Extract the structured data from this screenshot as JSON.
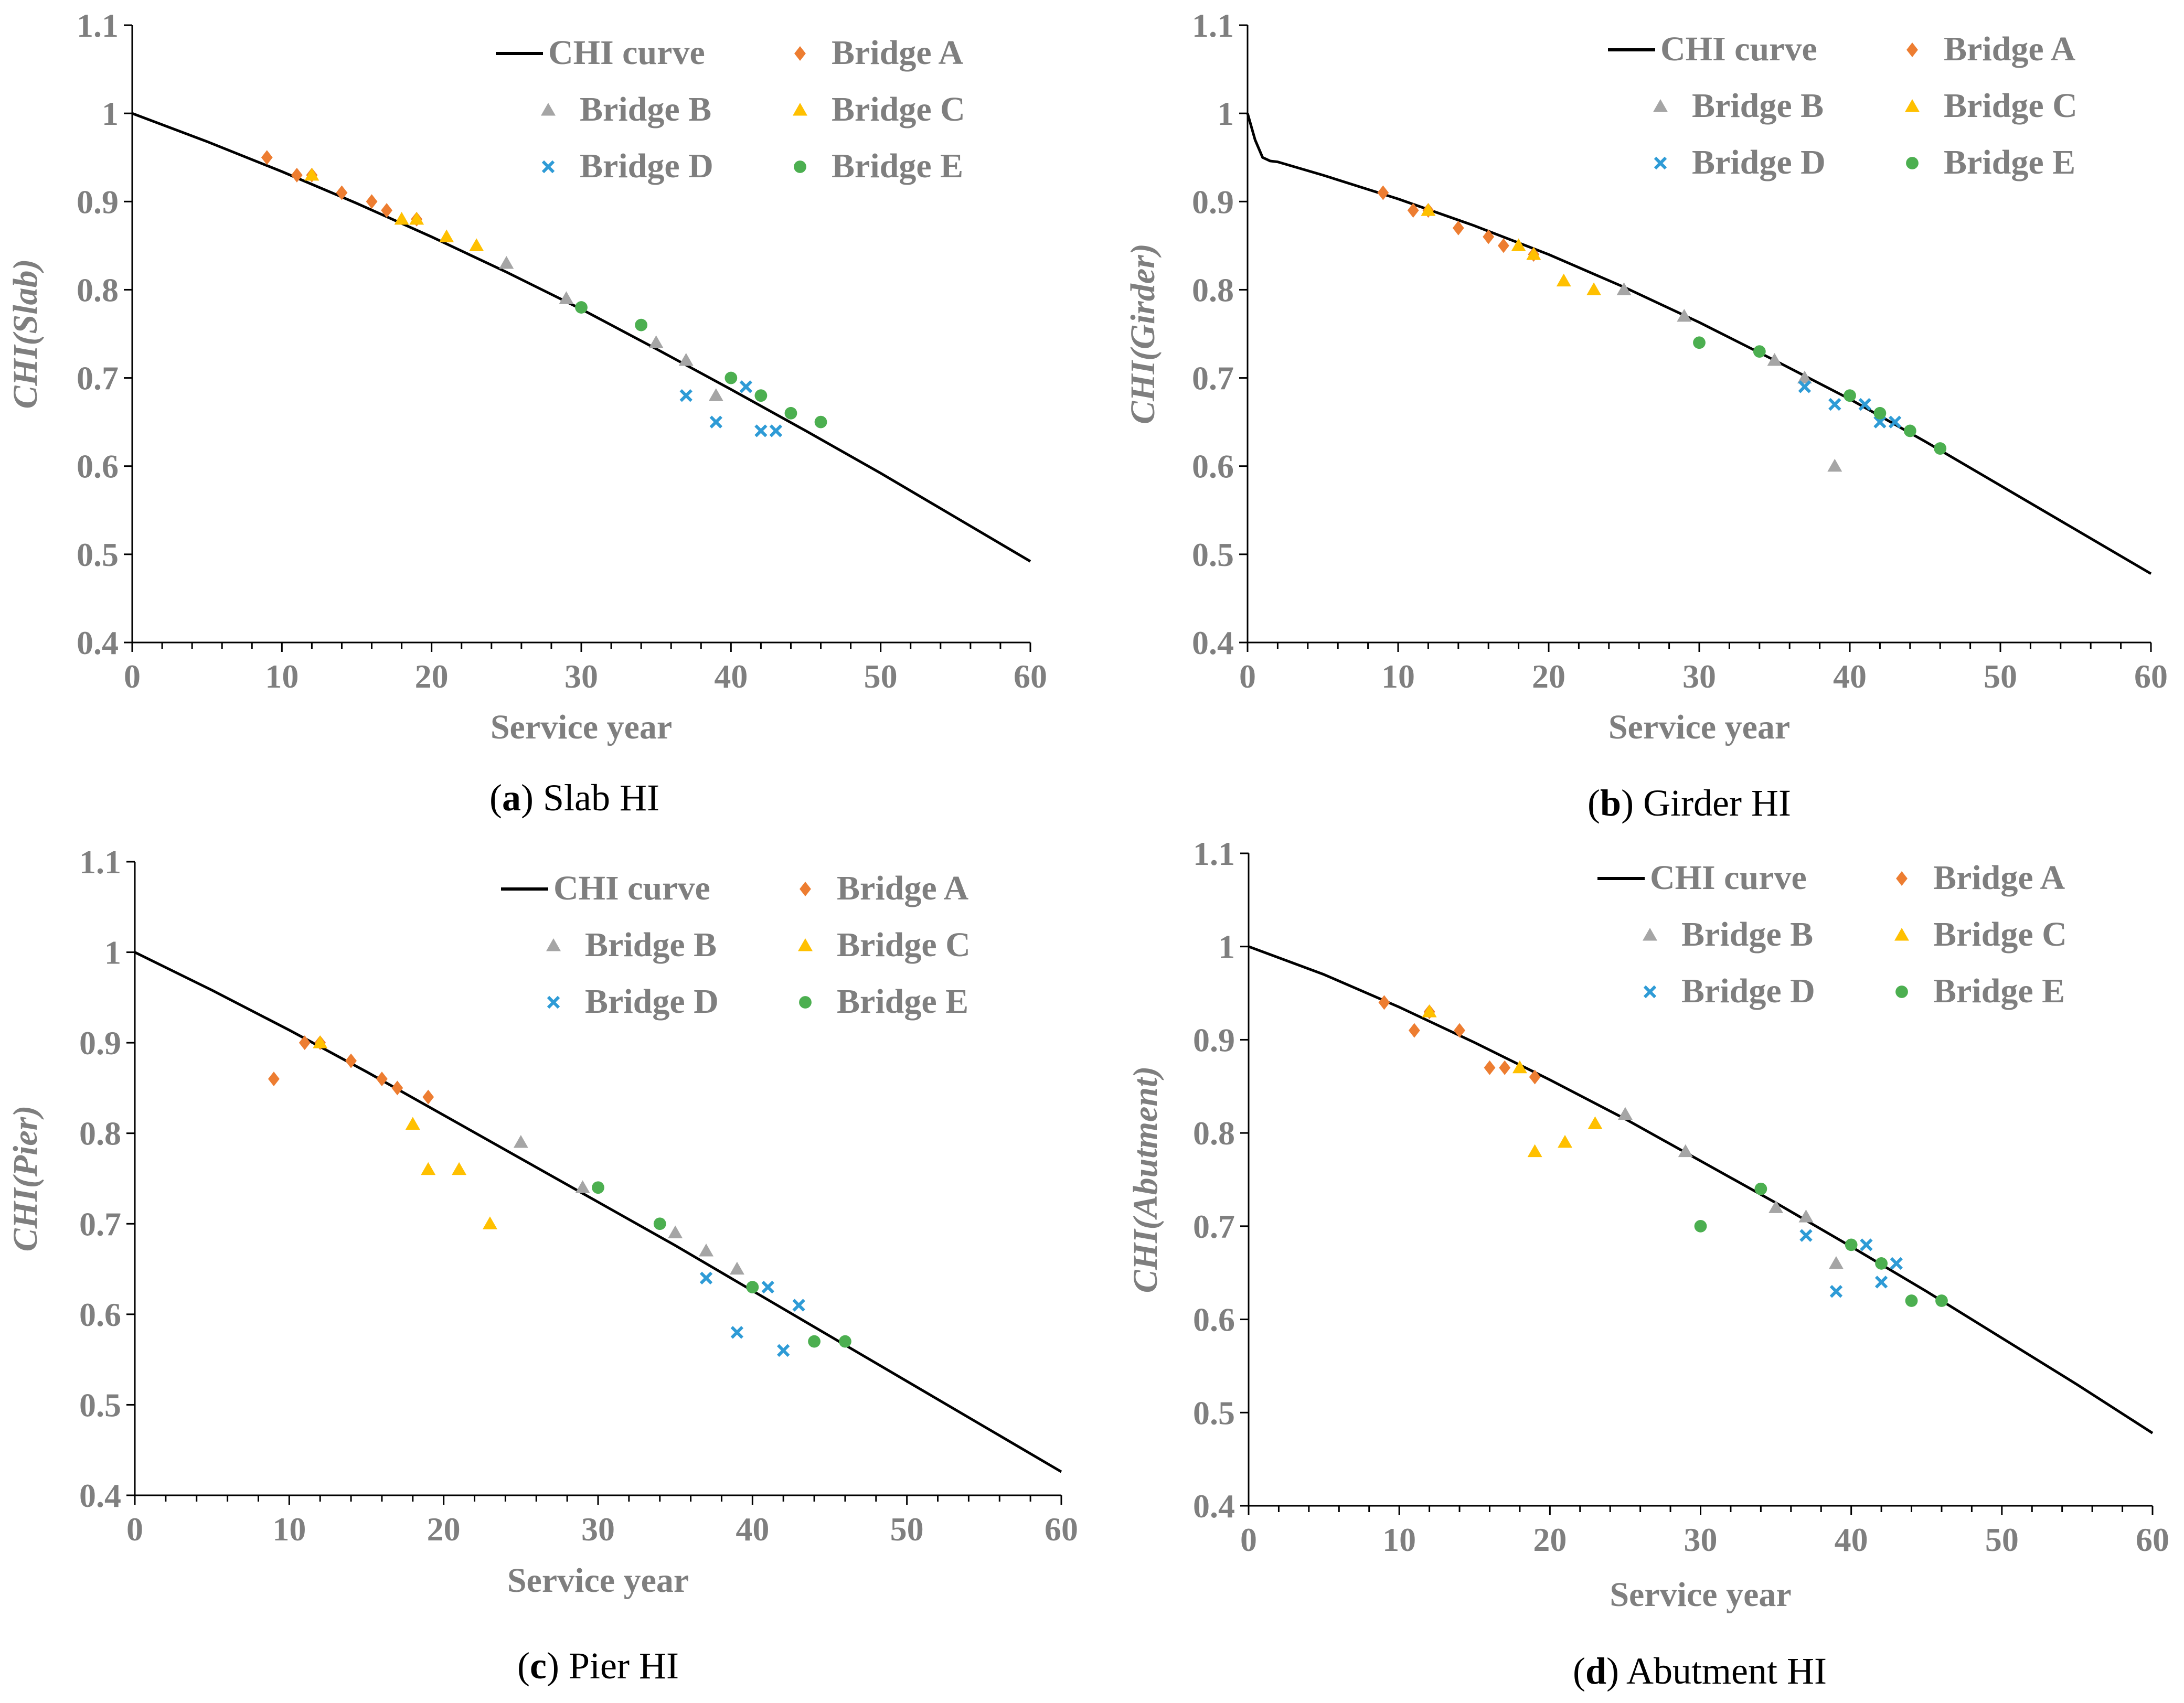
{
  "legend": [
    {
      "label": "CHI curve",
      "marker": "line",
      "color": "#000000"
    },
    {
      "label": "Bridge A",
      "marker": "diamond",
      "color": "#ED7D31"
    },
    {
      "label": "Bridge B",
      "marker": "triangle",
      "color": "#A5A5A5"
    },
    {
      "label": "Bridge C",
      "marker": "triangle",
      "color": "#FFC000"
    },
    {
      "label": "Bridge D",
      "marker": "x",
      "color": "#2E9BD6"
    },
    {
      "label": "Bridge E",
      "marker": "circle",
      "color": "#4CAF50"
    }
  ],
  "chart_data": [
    {
      "type": "scatter",
      "panel_letter": "a",
      "caption": "Slab HI",
      "xlabel": "Service year",
      "ylabel": "CHI(Slab)",
      "xlim": [
        0,
        60
      ],
      "ylim": [
        0.4,
        1.1
      ],
      "xticks": [
        0,
        10,
        20,
        30,
        40,
        50,
        60
      ],
      "yticks": [
        0.4,
        0.5,
        0.6,
        0.7,
        0.8,
        0.9,
        1,
        1.1
      ],
      "curve": {
        "name": "CHI curve",
        "x": [
          0,
          5,
          10,
          15,
          20,
          25,
          30,
          35,
          40,
          45,
          50,
          55,
          60
        ],
        "y": [
          1.0,
          0.968,
          0.934,
          0.898,
          0.86,
          0.82,
          0.778,
          0.733,
          0.687,
          0.64,
          0.592,
          0.542,
          0.492
        ]
      },
      "series": [
        {
          "name": "Bridge A",
          "points": [
            [
              9,
              0.95
            ],
            [
              11,
              0.93
            ],
            [
              12,
              0.93
            ],
            [
              14,
              0.91
            ],
            [
              16,
              0.9
            ],
            [
              17,
              0.89
            ],
            [
              19,
              0.88
            ]
          ]
        },
        {
          "name": "Bridge B",
          "points": [
            [
              25,
              0.83
            ],
            [
              29,
              0.79
            ],
            [
              35,
              0.74
            ],
            [
              37,
              0.72
            ],
            [
              39,
              0.68
            ]
          ]
        },
        {
          "name": "Bridge C",
          "points": [
            [
              12,
              0.93
            ],
            [
              18,
              0.88
            ],
            [
              19,
              0.88
            ],
            [
              21,
              0.86
            ],
            [
              23,
              0.85
            ]
          ]
        },
        {
          "name": "Bridge D",
          "points": [
            [
              37,
              0.68
            ],
            [
              39,
              0.65
            ],
            [
              41,
              0.69
            ],
            [
              42,
              0.64
            ],
            [
              43,
              0.64
            ]
          ]
        },
        {
          "name": "Bridge E",
          "points": [
            [
              30,
              0.78
            ],
            [
              34,
              0.76
            ],
            [
              40,
              0.7
            ],
            [
              42,
              0.68
            ],
            [
              44,
              0.66
            ],
            [
              46,
              0.65
            ]
          ]
        }
      ]
    },
    {
      "type": "scatter",
      "panel_letter": "b",
      "caption": "Girder HI",
      "xlabel": "Service year",
      "ylabel": "CHI(Girder)",
      "xlim": [
        0,
        60
      ],
      "ylim": [
        0.4,
        1.1
      ],
      "xticks": [
        0,
        10,
        20,
        30,
        40,
        50,
        60
      ],
      "yticks": [
        0.4,
        0.5,
        0.6,
        0.7,
        0.8,
        0.9,
        1,
        1.1
      ],
      "curve": {
        "name": "CHI curve",
        "x": [
          0,
          0.5,
          1,
          1.5,
          2,
          5,
          10,
          15,
          20,
          25,
          30,
          35,
          40,
          45,
          50,
          55,
          60
        ],
        "y": [
          1.0,
          0.97,
          0.95,
          0.946,
          0.945,
          0.93,
          0.903,
          0.873,
          0.84,
          0.803,
          0.763,
          0.72,
          0.676,
          0.628,
          0.578,
          0.528,
          0.478
        ]
      },
      "series": [
        {
          "name": "Bridge A",
          "points": [
            [
              9,
              0.91
            ],
            [
              11,
              0.89
            ],
            [
              12,
              0.89
            ],
            [
              14,
              0.87
            ],
            [
              16,
              0.86
            ],
            [
              17,
              0.85
            ],
            [
              19,
              0.84
            ]
          ]
        },
        {
          "name": "Bridge B",
          "points": [
            [
              25,
              0.8
            ],
            [
              29,
              0.77
            ],
            [
              35,
              0.72
            ],
            [
              37,
              0.7
            ],
            [
              39,
              0.6
            ]
          ]
        },
        {
          "name": "Bridge C",
          "points": [
            [
              12,
              0.89
            ],
            [
              18,
              0.85
            ],
            [
              19,
              0.84
            ],
            [
              21,
              0.81
            ],
            [
              23,
              0.8
            ]
          ]
        },
        {
          "name": "Bridge D",
          "points": [
            [
              37,
              0.69
            ],
            [
              39,
              0.67
            ],
            [
              41,
              0.67
            ],
            [
              42,
              0.65
            ],
            [
              43,
              0.65
            ]
          ]
        },
        {
          "name": "Bridge E",
          "points": [
            [
              30,
              0.74
            ],
            [
              34,
              0.73
            ],
            [
              40,
              0.68
            ],
            [
              42,
              0.66
            ],
            [
              44,
              0.64
            ],
            [
              46,
              0.62
            ]
          ]
        }
      ]
    },
    {
      "type": "scatter",
      "panel_letter": "c",
      "caption": "Pier HI",
      "xlabel": "Service year",
      "ylabel": "CHI(Pier)",
      "xlim": [
        0,
        60
      ],
      "ylim": [
        0.4,
        1.1
      ],
      "xticks": [
        0,
        10,
        20,
        30,
        40,
        50,
        60
      ],
      "yticks": [
        0.4,
        0.5,
        0.6,
        0.7,
        0.8,
        0.9,
        1,
        1.1
      ],
      "curve": {
        "name": "CHI curve",
        "x": [
          0,
          5,
          10,
          15,
          20,
          25,
          30,
          35,
          40,
          45,
          50,
          55,
          60
        ],
        "y": [
          1.0,
          0.958,
          0.914,
          0.868,
          0.82,
          0.772,
          0.724,
          0.676,
          0.626,
          0.576,
          0.526,
          0.476,
          0.426
        ]
      },
      "series": [
        {
          "name": "Bridge A",
          "points": [
            [
              9,
              0.86
            ],
            [
              11,
              0.9
            ],
            [
              12,
              0.9
            ],
            [
              14,
              0.88
            ],
            [
              16,
              0.86
            ],
            [
              17,
              0.85
            ],
            [
              19,
              0.84
            ]
          ]
        },
        {
          "name": "Bridge B",
          "points": [
            [
              25,
              0.79
            ],
            [
              29,
              0.74
            ],
            [
              35,
              0.69
            ],
            [
              37,
              0.67
            ],
            [
              39,
              0.65
            ]
          ]
        },
        {
          "name": "Bridge C",
          "points": [
            [
              12,
              0.9
            ],
            [
              18,
              0.81
            ],
            [
              19,
              0.76
            ],
            [
              21,
              0.76
            ],
            [
              23,
              0.7
            ]
          ]
        },
        {
          "name": "Bridge D",
          "points": [
            [
              37,
              0.64
            ],
            [
              39,
              0.58
            ],
            [
              41,
              0.63
            ],
            [
              42,
              0.56
            ],
            [
              43,
              0.61
            ]
          ]
        },
        {
          "name": "Bridge E",
          "points": [
            [
              30,
              0.74
            ],
            [
              34,
              0.7
            ],
            [
              40,
              0.63
            ],
            [
              44,
              0.57
            ],
            [
              46,
              0.57
            ]
          ]
        }
      ]
    },
    {
      "type": "scatter",
      "panel_letter": "d",
      "caption": "Abutment HI",
      "xlabel": "Service year",
      "ylabel": "CHI(Abutment)",
      "xlim": [
        0,
        60
      ],
      "ylim": [
        0.4,
        1.1
      ],
      "xticks": [
        0,
        10,
        20,
        30,
        40,
        50,
        60
      ],
      "yticks": [
        0.4,
        0.5,
        0.6,
        0.7,
        0.8,
        0.9,
        1,
        1.1
      ],
      "curve": {
        "name": "CHI curve",
        "x": [
          0,
          5,
          10,
          15,
          20,
          25,
          30,
          35,
          40,
          45,
          50,
          55,
          60
        ],
        "y": [
          1.0,
          0.97,
          0.935,
          0.897,
          0.857,
          0.815,
          0.77,
          0.725,
          0.678,
          0.63,
          0.58,
          0.53,
          0.478
        ]
      },
      "series": [
        {
          "name": "Bridge A",
          "points": [
            [
              9,
              0.94
            ],
            [
              11,
              0.91
            ],
            [
              12,
              0.93
            ],
            [
              14,
              0.91
            ],
            [
              16,
              0.87
            ],
            [
              17,
              0.87
            ],
            [
              19,
              0.86
            ]
          ]
        },
        {
          "name": "Bridge B",
          "points": [
            [
              25,
              0.82
            ],
            [
              29,
              0.78
            ],
            [
              35,
              0.72
            ],
            [
              37,
              0.71
            ],
            [
              39,
              0.66
            ]
          ]
        },
        {
          "name": "Bridge C",
          "points": [
            [
              12,
              0.93
            ],
            [
              18,
              0.87
            ],
            [
              19,
              0.78
            ],
            [
              21,
              0.79
            ],
            [
              23,
              0.81
            ]
          ]
        },
        {
          "name": "Bridge D",
          "points": [
            [
              37,
              0.69
            ],
            [
              39,
              0.63
            ],
            [
              41,
              0.68
            ],
            [
              42,
              0.64
            ],
            [
              43,
              0.66
            ]
          ]
        },
        {
          "name": "Bridge E",
          "points": [
            [
              30,
              0.7
            ],
            [
              34,
              0.74
            ],
            [
              40,
              0.68
            ],
            [
              42,
              0.66
            ],
            [
              44,
              0.62
            ],
            [
              46,
              0.62
            ]
          ]
        }
      ]
    }
  ]
}
